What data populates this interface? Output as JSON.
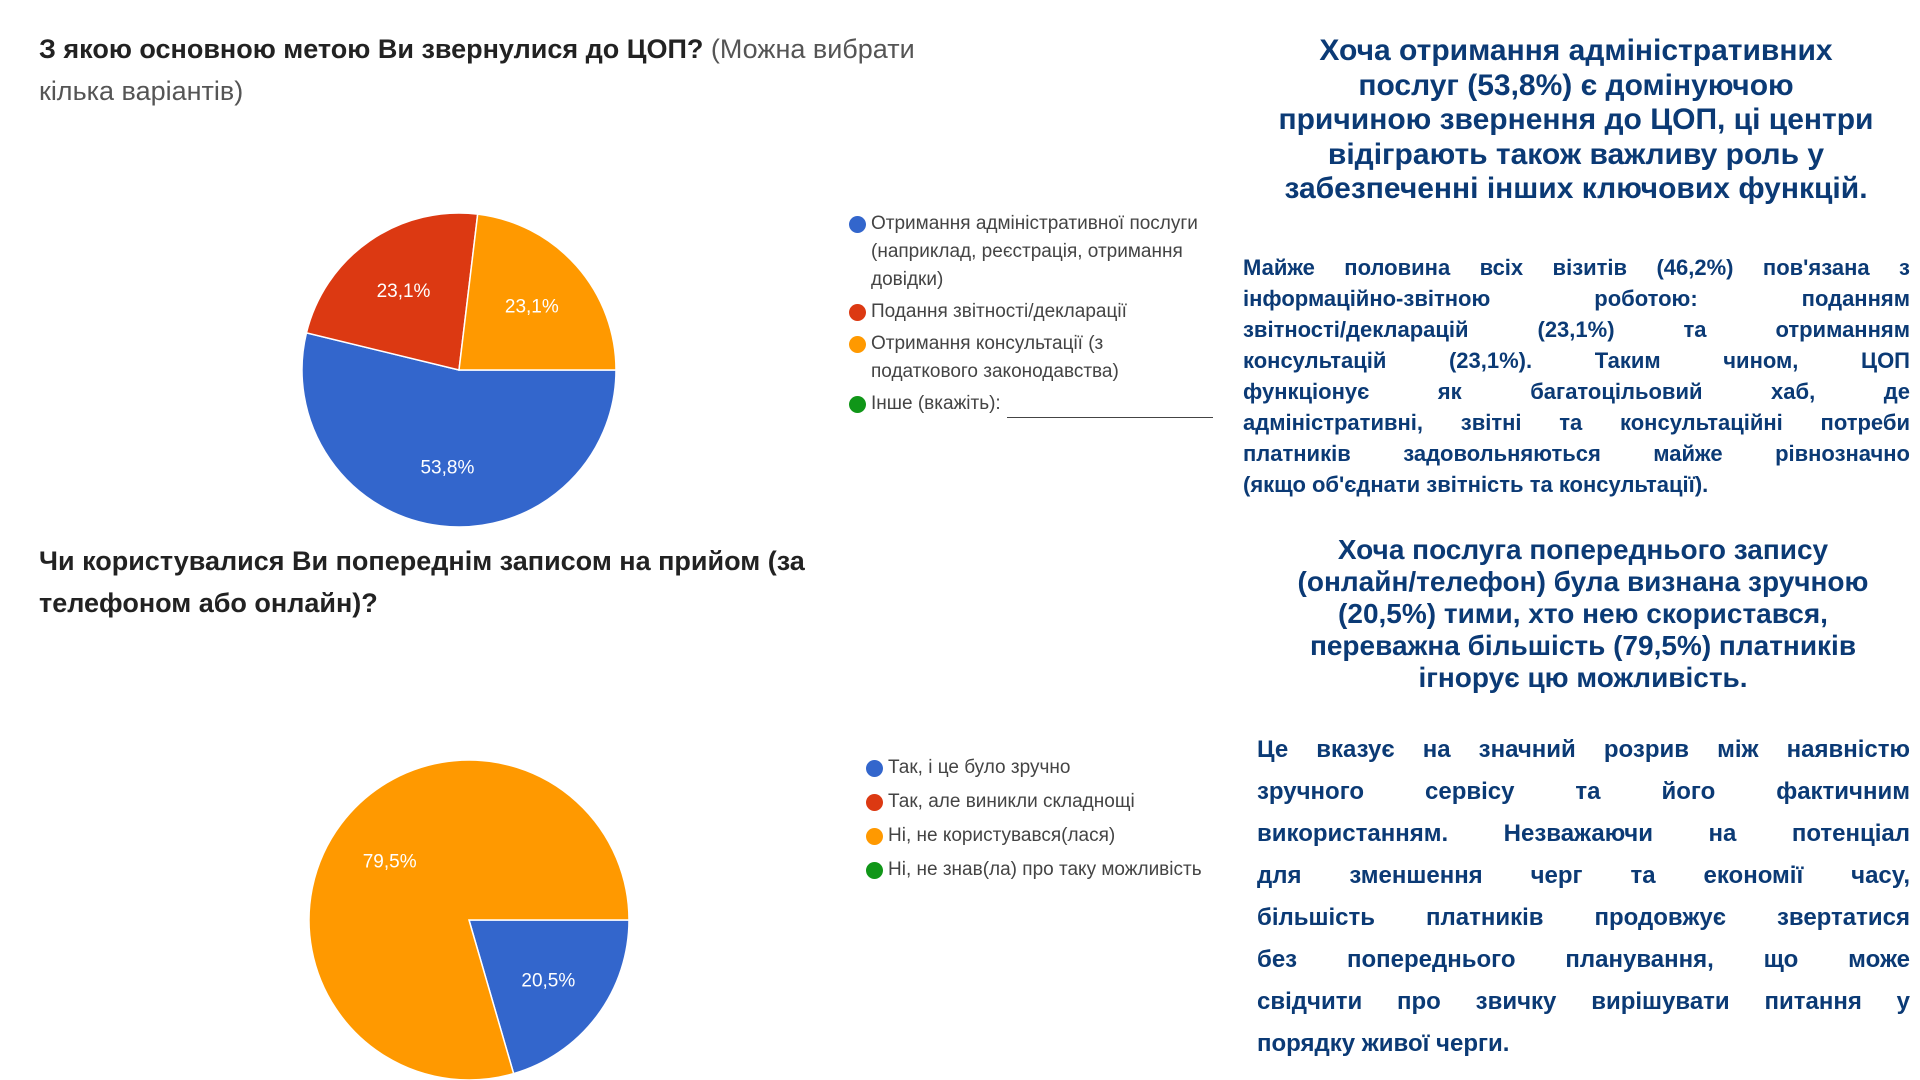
{
  "chart_data": [
    {
      "type": "pie",
      "title": "З якою основною метою Ви звернулися до ЦОП?",
      "subtitle": "(Можна вибрати кілька варіантів)",
      "legend_position": "right",
      "slices": [
        {
          "label": "Отримання адміністративної послуги (наприклад, реєстрація, отримання довідки)",
          "value": 53.8,
          "display": "53,8%",
          "color": "#3366cc"
        },
        {
          "label": "Подання звітності/декларації",
          "value": 23.1,
          "display": "23,1%",
          "color": "#dc3912"
        },
        {
          "label": "Отримання консультації (з податкового законодавства)",
          "value": 23.1,
          "display": "23,1%",
          "color": "#ff9900"
        },
        {
          "label": "Інше (вкажіть):",
          "value": 0,
          "display": "",
          "color": "#109618"
        }
      ]
    },
    {
      "type": "pie",
      "title": "Чи користувалися Ви попереднім записом на прийом (за телефоном або онлайн)?",
      "legend_position": "right",
      "slices": [
        {
          "label": "Так, і це було зручно",
          "value": 20.5,
          "display": "20,5%",
          "color": "#3366cc"
        },
        {
          "label": "Так, але виникли складнощі",
          "value": 0,
          "display": "",
          "color": "#dc3912"
        },
        {
          "label": "Ні, не користувався(лася)",
          "value": 79.5,
          "display": "79,5%",
          "color": "#ff9900"
        },
        {
          "label": "Ні, не знав(ла) про таку можливість",
          "value": 0,
          "display": "",
          "color": "#109618"
        }
      ]
    }
  ],
  "legend1_lines": [
    "Отримання адміністративної послуги",
    "(наприклад, реєстрація, отримання",
    "довідки)",
    "Подання звітності/декларації",
    "Отримання консультації (з",
    "податкового законодавства)",
    "Інше (вкажіть):"
  ],
  "commentary": {
    "heading1": [
      "Хоча отримання адміністративних",
      "послуг (53,8%) є домінуючою",
      "причиною звернення до ЦОП, ці центри",
      "відіграють також важливу роль у",
      "забезпеченні інших ключових функцій."
    ],
    "para1": [
      "Майже половина всіх візитів (46,2%) пов'язана з",
      "інформаційно-звітною роботою: поданням",
      "звітності/декларацій (23,1%) та отриманням",
      "консультацій (23,1%). Таким чином, ЦОП",
      "функціонує як багатоцільовий хаб, де",
      "адміністративні, звітні та консультаційні потреби",
      "платників задовольняються майже рівнозначно",
      "(якщо об'єднати звітність та консультації)."
    ],
    "heading2": [
      "Хоча послуга попереднього запису",
      "(онлайн/телефон) була визнана зручною",
      "(20,5%) тими, хто нею скористався,",
      "переважна більшість (79,5%) платників",
      "ігнорує цю можливість."
    ],
    "para2": [
      "Це вказує на значний розрив між наявністю",
      "зручного сервісу та його фактичним",
      "використанням. Незважаючи на потенціал",
      "для зменшення черг та економії часу,",
      "більшість платників продовжує звертатися",
      "без попереднього планування, що може",
      "свідчити про звичку вирішувати питання у",
      "порядку живої черги."
    ]
  },
  "colors": {
    "text_accent": "#0b3a75"
  }
}
